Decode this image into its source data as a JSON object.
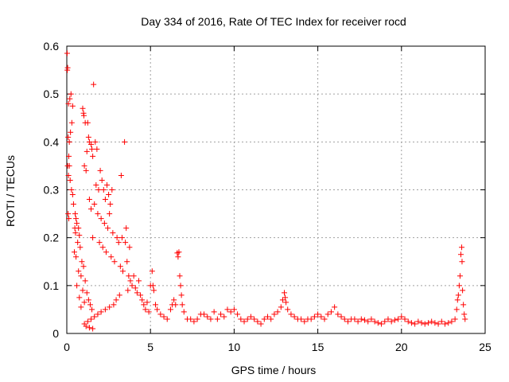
{
  "chart_data": {
    "type": "scatter",
    "title": "Day 334 of 2016, Rate Of TEC Index for receiver rocd",
    "xlabel": "GPS time / hours",
    "ylabel": "ROTI / TECUs",
    "xlim": [
      0,
      25
    ],
    "ylim": [
      0,
      0.6
    ],
    "xticks": [
      0,
      5,
      10,
      15,
      20,
      25
    ],
    "yticks": [
      0,
      0.1,
      0.2,
      0.3,
      0.4,
      0.5,
      0.6
    ],
    "xtick_labels": [
      "0",
      "5",
      "10",
      "15",
      "20",
      "25"
    ],
    "ytick_labels": [
      "0",
      "0.1",
      "0.2",
      "0.3",
      "0.4",
      "0.5",
      "0.6"
    ],
    "grid": true,
    "marker": "+",
    "color": "#ff0000",
    "series": [
      {
        "name": "ROTI",
        "points": [
          [
            0.02,
            0.585
          ],
          [
            0.03,
            0.55
          ],
          [
            0.05,
            0.555
          ],
          [
            0.1,
            0.48
          ],
          [
            0.18,
            0.49
          ],
          [
            0.25,
            0.5
          ],
          [
            0.35,
            0.475
          ],
          [
            0.08,
            0.41
          ],
          [
            0.15,
            0.4
          ],
          [
            0.12,
            0.37
          ],
          [
            0.22,
            0.42
          ],
          [
            0.3,
            0.44
          ],
          [
            0.05,
            0.35
          ],
          [
            0.15,
            0.35
          ],
          [
            0.1,
            0.33
          ],
          [
            0.2,
            0.32
          ],
          [
            0.28,
            0.3
          ],
          [
            0.35,
            0.29
          ],
          [
            0.08,
            0.25
          ],
          [
            0.12,
            0.24
          ],
          [
            0.4,
            0.27
          ],
          [
            0.5,
            0.25
          ],
          [
            0.55,
            0.24
          ],
          [
            0.6,
            0.23
          ],
          [
            0.48,
            0.22
          ],
          [
            0.52,
            0.21
          ],
          [
            0.7,
            0.22
          ],
          [
            0.75,
            0.205
          ],
          [
            0.65,
            0.19
          ],
          [
            0.8,
            0.18
          ],
          [
            0.45,
            0.17
          ],
          [
            0.55,
            0.16
          ],
          [
            0.9,
            0.15
          ],
          [
            1.0,
            0.14
          ],
          [
            0.7,
            0.13
          ],
          [
            0.85,
            0.12
          ],
          [
            1.1,
            0.11
          ],
          [
            0.6,
            0.1
          ],
          [
            0.95,
            0.09
          ],
          [
            1.2,
            0.085
          ],
          [
            0.75,
            0.075
          ],
          [
            1.3,
            0.07
          ],
          [
            1.05,
            0.065
          ],
          [
            1.4,
            0.06
          ],
          [
            0.85,
            0.055
          ],
          [
            1.5,
            0.05
          ],
          [
            0.95,
            0.47
          ],
          [
            1.0,
            0.46
          ],
          [
            1.02,
            0.455
          ],
          [
            1.1,
            0.44
          ],
          [
            1.25,
            0.44
          ],
          [
            1.3,
            0.41
          ],
          [
            1.35,
            0.4
          ],
          [
            1.45,
            0.395
          ],
          [
            1.6,
            0.52
          ],
          [
            1.7,
            0.4
          ],
          [
            1.2,
            0.38
          ],
          [
            1.5,
            0.385
          ],
          [
            1.8,
            0.385
          ],
          [
            1.55,
            0.37
          ],
          [
            1.05,
            0.35
          ],
          [
            1.15,
            0.34
          ],
          [
            1.75,
            0.31
          ],
          [
            2.0,
            0.34
          ],
          [
            2.1,
            0.32
          ],
          [
            1.9,
            0.3
          ],
          [
            2.2,
            0.3
          ],
          [
            2.4,
            0.31
          ],
          [
            2.5,
            0.29
          ],
          [
            2.3,
            0.28
          ],
          [
            2.6,
            0.27
          ],
          [
            2.7,
            0.3
          ],
          [
            1.35,
            0.28
          ],
          [
            1.65,
            0.27
          ],
          [
            1.45,
            0.26
          ],
          [
            1.85,
            0.25
          ],
          [
            2.05,
            0.24
          ],
          [
            2.25,
            0.23
          ],
          [
            2.45,
            0.22
          ],
          [
            2.55,
            0.25
          ],
          [
            2.75,
            0.21
          ],
          [
            1.55,
            0.2
          ],
          [
            1.95,
            0.19
          ],
          [
            2.15,
            0.18
          ],
          [
            2.35,
            0.17
          ],
          [
            2.65,
            0.16
          ],
          [
            2.85,
            0.15
          ],
          [
            3.0,
            0.2
          ],
          [
            3.1,
            0.19
          ],
          [
            3.2,
            0.14
          ],
          [
            3.25,
            0.33
          ],
          [
            3.3,
            0.2
          ],
          [
            3.45,
            0.4
          ],
          [
            3.5,
            0.19
          ],
          [
            3.55,
            0.22
          ],
          [
            3.6,
            0.15
          ],
          [
            3.7,
            0.12
          ],
          [
            3.75,
            0.18
          ],
          [
            3.8,
            0.11
          ],
          [
            3.9,
            0.1
          ],
          [
            4.0,
            0.12
          ],
          [
            4.1,
            0.095
          ],
          [
            4.2,
            0.085
          ],
          [
            4.3,
            0.11
          ],
          [
            4.4,
            0.08
          ],
          [
            3.35,
            0.13
          ],
          [
            3.65,
            0.09
          ],
          [
            3.15,
            0.08
          ],
          [
            2.95,
            0.07
          ],
          [
            2.8,
            0.06
          ],
          [
            2.55,
            0.055
          ],
          [
            2.3,
            0.05
          ],
          [
            2.05,
            0.045
          ],
          [
            1.85,
            0.04
          ],
          [
            1.65,
            0.035
          ],
          [
            1.45,
            0.03
          ],
          [
            1.25,
            0.025
          ],
          [
            1.05,
            0.02
          ],
          [
            1.15,
            0.015
          ],
          [
            1.35,
            0.012
          ],
          [
            1.55,
            0.01
          ],
          [
            4.5,
            0.07
          ],
          [
            4.6,
            0.06
          ],
          [
            4.7,
            0.05
          ],
          [
            4.8,
            0.065
          ],
          [
            4.9,
            0.045
          ],
          [
            5.0,
            0.1
          ],
          [
            5.1,
            0.13
          ],
          [
            5.15,
            0.1
          ],
          [
            5.2,
            0.09
          ],
          [
            5.3,
            0.06
          ],
          [
            5.4,
            0.05
          ],
          [
            5.6,
            0.04
          ],
          [
            5.8,
            0.035
          ],
          [
            6.0,
            0.03
          ],
          [
            6.2,
            0.05
          ],
          [
            6.3,
            0.06
          ],
          [
            6.4,
            0.07
          ],
          [
            6.5,
            0.06
          ],
          [
            6.6,
            0.168
          ],
          [
            6.65,
            0.16
          ],
          [
            6.7,
            0.17
          ],
          [
            6.75,
            0.12
          ],
          [
            6.8,
            0.1
          ],
          [
            6.85,
            0.08
          ],
          [
            6.9,
            0.06
          ],
          [
            7.0,
            0.045
          ],
          [
            7.2,
            0.03
          ],
          [
            7.4,
            0.03
          ],
          [
            7.6,
            0.025
          ],
          [
            7.8,
            0.03
          ],
          [
            8.0,
            0.04
          ],
          [
            8.2,
            0.04
          ],
          [
            8.4,
            0.035
          ],
          [
            8.6,
            0.03
          ],
          [
            8.8,
            0.045
          ],
          [
            9.0,
            0.03
          ],
          [
            9.2,
            0.04
          ],
          [
            9.4,
            0.035
          ],
          [
            9.6,
            0.05
          ],
          [
            9.8,
            0.045
          ],
          [
            10.0,
            0.05
          ],
          [
            10.2,
            0.04
          ],
          [
            10.4,
            0.03
          ],
          [
            10.6,
            0.025
          ],
          [
            10.8,
            0.03
          ],
          [
            11.0,
            0.035
          ],
          [
            11.2,
            0.03
          ],
          [
            11.4,
            0.025
          ],
          [
            11.6,
            0.02
          ],
          [
            11.8,
            0.03
          ],
          [
            12.0,
            0.035
          ],
          [
            12.2,
            0.03
          ],
          [
            12.4,
            0.04
          ],
          [
            12.6,
            0.045
          ],
          [
            12.8,
            0.055
          ],
          [
            12.9,
            0.07
          ],
          [
            13.0,
            0.085
          ],
          [
            13.05,
            0.075
          ],
          [
            13.1,
            0.065
          ],
          [
            13.2,
            0.05
          ],
          [
            13.4,
            0.04
          ],
          [
            13.6,
            0.035
          ],
          [
            13.8,
            0.03
          ],
          [
            14.0,
            0.03
          ],
          [
            14.2,
            0.025
          ],
          [
            14.4,
            0.03
          ],
          [
            14.6,
            0.03
          ],
          [
            14.8,
            0.035
          ],
          [
            15.0,
            0.04
          ],
          [
            15.2,
            0.035
          ],
          [
            15.4,
            0.03
          ],
          [
            15.6,
            0.04
          ],
          [
            15.8,
            0.045
          ],
          [
            16.0,
            0.055
          ],
          [
            16.2,
            0.04
          ],
          [
            16.4,
            0.035
          ],
          [
            16.6,
            0.03
          ],
          [
            16.8,
            0.025
          ],
          [
            17.0,
            0.03
          ],
          [
            17.2,
            0.03
          ],
          [
            17.4,
            0.025
          ],
          [
            17.6,
            0.03
          ],
          [
            17.8,
            0.028
          ],
          [
            18.0,
            0.025
          ],
          [
            18.2,
            0.03
          ],
          [
            18.4,
            0.025
          ],
          [
            18.6,
            0.022
          ],
          [
            18.8,
            0.02
          ],
          [
            19.0,
            0.025
          ],
          [
            19.2,
            0.03
          ],
          [
            19.4,
            0.025
          ],
          [
            19.6,
            0.028
          ],
          [
            19.8,
            0.03
          ],
          [
            20.0,
            0.035
          ],
          [
            20.2,
            0.03
          ],
          [
            20.4,
            0.025
          ],
          [
            20.6,
            0.022
          ],
          [
            20.8,
            0.02
          ],
          [
            21.0,
            0.025
          ],
          [
            21.2,
            0.022
          ],
          [
            21.4,
            0.02
          ],
          [
            21.6,
            0.022
          ],
          [
            21.8,
            0.025
          ],
          [
            22.0,
            0.022
          ],
          [
            22.2,
            0.02
          ],
          [
            22.4,
            0.025
          ],
          [
            22.6,
            0.02
          ],
          [
            22.8,
            0.022
          ],
          [
            23.0,
            0.025
          ],
          [
            23.2,
            0.03
          ],
          [
            23.3,
            0.05
          ],
          [
            23.35,
            0.07
          ],
          [
            23.4,
            0.08
          ],
          [
            23.45,
            0.1
          ],
          [
            23.5,
            0.12
          ],
          [
            23.55,
            0.165
          ],
          [
            23.6,
            0.18
          ],
          [
            23.62,
            0.15
          ],
          [
            23.65,
            0.09
          ],
          [
            23.7,
            0.06
          ],
          [
            23.75,
            0.04
          ],
          [
            23.8,
            0.03
          ]
        ]
      }
    ]
  }
}
